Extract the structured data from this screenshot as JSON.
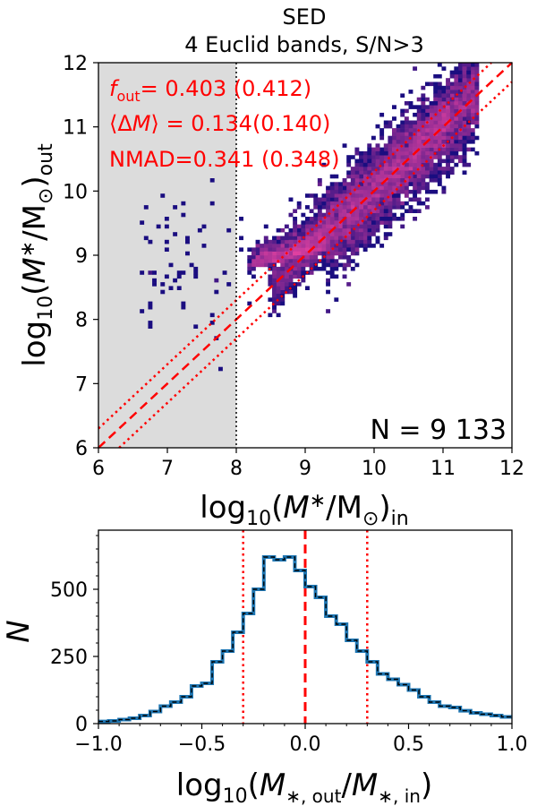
{
  "colors": {
    "masked_region": "#dcdcdc",
    "reference_lines": "#ff0000",
    "histogram_fill": "#1f77b4",
    "histogram_outline": "#000000",
    "heatmap_low": "#1a0d80",
    "heatmap_high": "#e040a0"
  },
  "chart_data": [
    {
      "type": "heatmap",
      "title_lines": [
        "SED",
        "4 Euclid bands, S/N>3"
      ],
      "xlabel": "log10(M*/M⊙)in",
      "ylabel": "log10(M*/M⊙)out",
      "xlim": [
        6,
        12
      ],
      "ylim": [
        6,
        12
      ],
      "xticks": [
        6,
        7,
        8,
        9,
        10,
        11,
        12
      ],
      "yticks": [
        6,
        7,
        8,
        9,
        10,
        11,
        12
      ],
      "shaded_region": {
        "x_from": 6,
        "x_to": 8
      },
      "vertical_line": {
        "x": 8,
        "style": "dotted",
        "color": "black"
      },
      "reference_lines": [
        {
          "label": "one-to-one",
          "offset": 0.0,
          "style": "dashed"
        },
        {
          "label": "+0.3 dex",
          "offset": 0.3,
          "style": "dotted"
        },
        {
          "label": "-0.3 dex",
          "offset": -0.3,
          "style": "dotted"
        }
      ],
      "annotations": {
        "fout_value": "= 0.403 (0.412)",
        "dm_value": "= 0.134(0.140)",
        "nmad": "NMAD=0.341 (0.348)"
      },
      "count_label": "N = 9 133"
    },
    {
      "type": "histogram",
      "xlabel": "log10(M*,out/M*,in)",
      "ylabel": "N",
      "xlim": [
        -1.0,
        1.0
      ],
      "ylim": [
        0,
        720
      ],
      "xticks": [
        -1.0,
        -0.5,
        0.0,
        0.5,
        1.0
      ],
      "xtick_labels": [
        "−1.0",
        "−0.5",
        "0.0",
        "0.5",
        "1.0"
      ],
      "yticks": [
        0,
        250,
        500
      ],
      "bin_width": 0.05,
      "bin_edges_start": -1.0,
      "counts": [
        8,
        10,
        15,
        20,
        30,
        45,
        65,
        80,
        100,
        140,
        150,
        230,
        270,
        340,
        410,
        500,
        620,
        610,
        620,
        570,
        510,
        470,
        400,
        370,
        310,
        270,
        230,
        185,
        165,
        145,
        125,
        100,
        80,
        65,
        60,
        48,
        40,
        35,
        30,
        25
      ],
      "vertical_lines": [
        {
          "x": 0.0,
          "style": "dashed"
        },
        {
          "x": -0.3,
          "style": "dotted"
        },
        {
          "x": 0.3,
          "style": "dotted"
        }
      ]
    }
  ]
}
